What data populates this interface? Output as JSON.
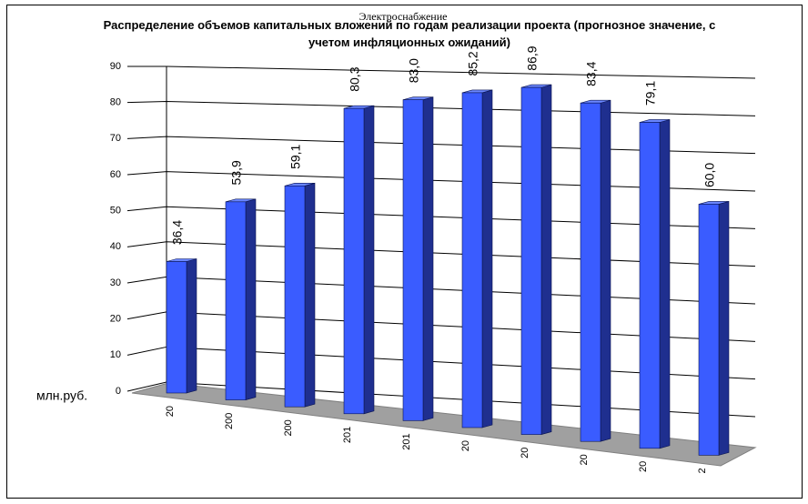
{
  "chart_data": {
    "type": "bar3d",
    "subtitle": "Электроснабжение",
    "title": "Распределение объемов капитальных вложений по годам реализации проекта (прогнозное значение, с учетом инфляционных ожиданий)",
    "y_label": "млн.руб.",
    "categories": [
      "20",
      "200",
      "200",
      "201",
      "201",
      "20",
      "20",
      "20",
      "20",
      "2"
    ],
    "values": [
      36.4,
      53.9,
      59.1,
      80.3,
      83.0,
      85.2,
      86.9,
      83.4,
      79.1,
      60.0
    ],
    "value_labels": [
      "36,4",
      "53,9",
      "59,1",
      "80,3",
      "83,0",
      "85,2",
      "86,9",
      "83,4",
      "79,1",
      "60,0"
    ],
    "color": "#3a5cff",
    "ylim": [
      0,
      90
    ],
    "yticks": [
      0,
      10,
      20,
      30,
      40,
      50,
      60,
      70,
      80,
      90
    ],
    "grid": true
  }
}
